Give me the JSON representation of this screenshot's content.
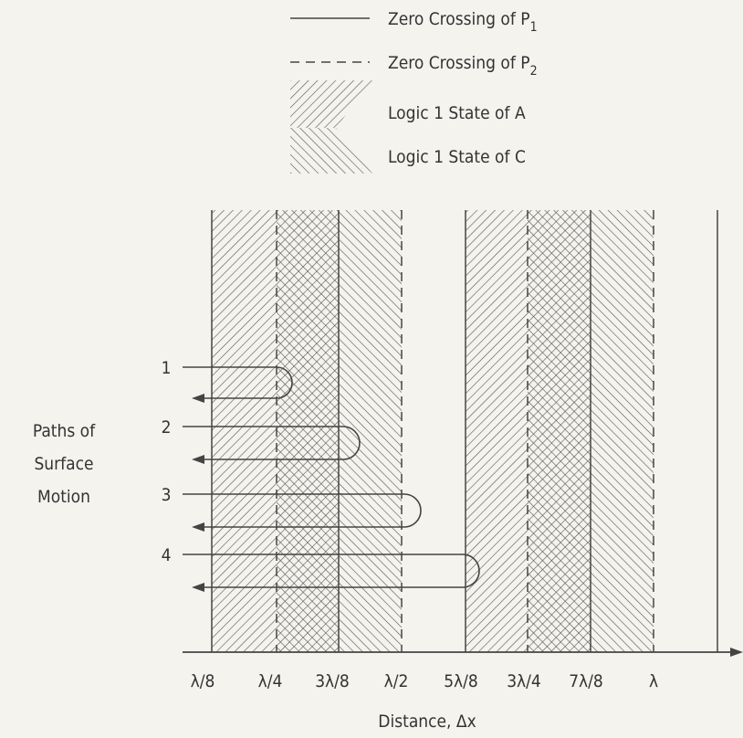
{
  "legend": [
    {
      "label": "Zero Crossing of P",
      "subscript": "1"
    },
    {
      "label": "Zero Crossing of P",
      "subscript": "2"
    },
    {
      "label": "Logic 1 State of A"
    },
    {
      "label": "Logic 1 State of C"
    }
  ],
  "paths_label": [
    "Paths of",
    "Surface",
    "Motion"
  ],
  "paths": [
    "1",
    "2",
    "3",
    "4"
  ],
  "x_ticks": [
    "λ/8",
    "λ/4",
    "3λ/8",
    "λ/2",
    "5λ/8",
    "3λ/4",
    "7λ/8",
    "λ"
  ],
  "x_axis_label": "Distance, Δx"
}
